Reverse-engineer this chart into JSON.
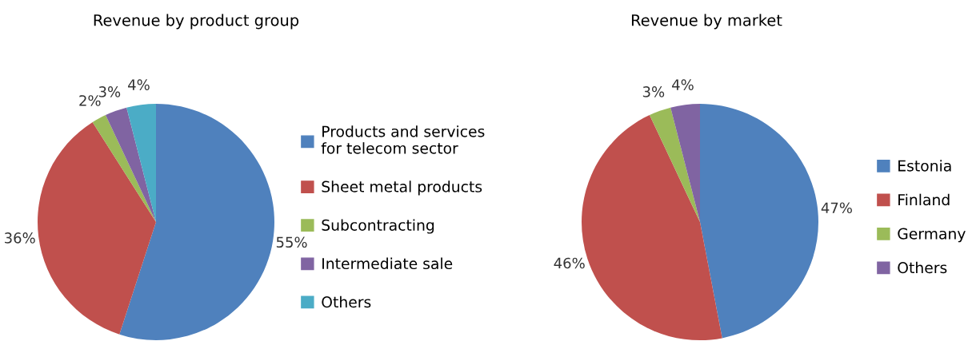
{
  "chart_data": [
    {
      "type": "pie",
      "title": "Revenue by product group",
      "categories": [
        "Products and services\nfor telecom sector",
        "Sheet metal products",
        "Subcontracting",
        "Intermediate sale",
        "Others"
      ],
      "values": [
        55,
        36,
        2,
        3,
        4
      ],
      "value_labels": [
        "55%",
        "36%",
        "2%",
        "3%",
        "4%"
      ],
      "colors": [
        "#4f81bd",
        "#c0504d",
        "#9bbb59",
        "#8064a2",
        "#4bacc6"
      ],
      "legend": "right"
    },
    {
      "type": "pie",
      "title": "Revenue by market",
      "categories": [
        "Estonia",
        "Finland",
        "Germany",
        "Others"
      ],
      "values": [
        47,
        46,
        3,
        4
      ],
      "value_labels": [
        "47%",
        "46%",
        "3%",
        "4%"
      ],
      "colors": [
        "#4f81bd",
        "#c0504d",
        "#9bbb59",
        "#8064a2"
      ],
      "legend": "right"
    }
  ]
}
